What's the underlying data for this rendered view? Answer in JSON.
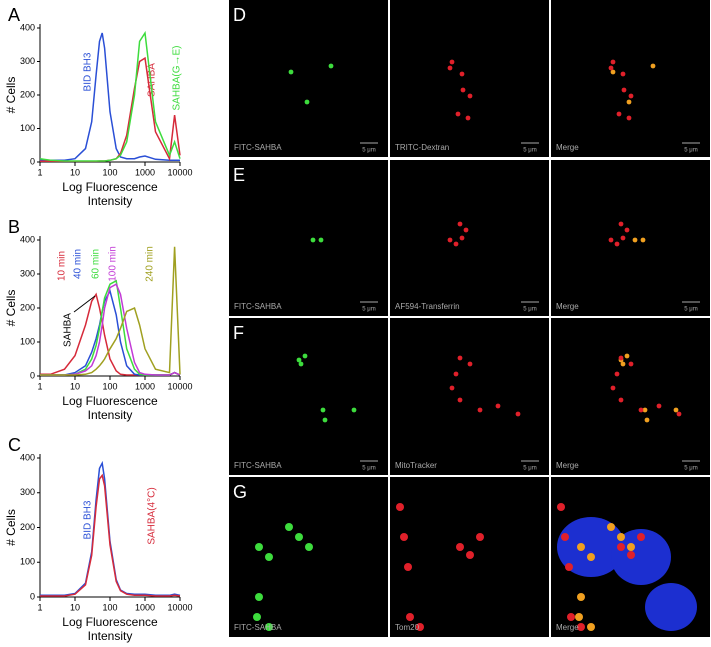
{
  "chart_data": [
    {
      "type": "line",
      "panel": "A",
      "ylabel": "# Cells",
      "xlabel": "Log Fluorescence Intensity",
      "xscale": "log",
      "xlim": [
        1,
        10000
      ],
      "xticks": [
        1,
        10,
        100,
        1000,
        10000
      ],
      "ylim": [
        0,
        400
      ],
      "yticks": [
        0,
        100,
        200,
        300,
        400
      ],
      "x": [
        1,
        2,
        5,
        10,
        20,
        30,
        40,
        50,
        60,
        70,
        100,
        150,
        200,
        300,
        500,
        700,
        1000,
        2000,
        5000,
        7000,
        10000
      ],
      "series": [
        {
          "name": "BID BH3",
          "color": "#2a4fd6",
          "values": [
            5,
            5,
            5,
            10,
            40,
            120,
            260,
            360,
            385,
            340,
            150,
            40,
            15,
            10,
            10,
            15,
            18,
            8,
            5,
            5,
            5
          ]
        },
        {
          "name": "SAHBA",
          "color": "#d62a3a",
          "values": [
            2,
            2,
            2,
            2,
            2,
            2,
            2,
            3,
            3,
            3,
            5,
            10,
            25,
            80,
            220,
            300,
            310,
            90,
            10,
            140,
            20
          ]
        },
        {
          "name": "SAHBA(G→E)",
          "color": "#3ddc3d",
          "values": [
            10,
            5,
            3,
            3,
            3,
            3,
            3,
            3,
            3,
            3,
            5,
            10,
            20,
            60,
            200,
            360,
            385,
            120,
            20,
            60,
            10
          ]
        }
      ]
    },
    {
      "type": "line",
      "panel": "B",
      "ylabel": "# Cells",
      "xlabel": "Log Fluorescence Intensity",
      "xscale": "log",
      "xlim": [
        1,
        10000
      ],
      "xticks": [
        1,
        10,
        100,
        1000,
        10000
      ],
      "ylim": [
        0,
        400
      ],
      "yticks": [
        0,
        100,
        200,
        300,
        400
      ],
      "annotation": "SAHBA",
      "x": [
        1,
        2,
        5,
        10,
        20,
        30,
        40,
        50,
        60,
        70,
        100,
        150,
        200,
        300,
        500,
        700,
        1000,
        2000,
        5000,
        7000,
        10000
      ],
      "series": [
        {
          "name": "10 min",
          "color": "#d62a3a",
          "values": [
            5,
            5,
            20,
            60,
            150,
            220,
            240,
            200,
            160,
            120,
            50,
            15,
            5,
            3,
            3,
            3,
            3,
            3,
            3,
            10,
            3
          ]
        },
        {
          "name": "40 min",
          "color": "#2a4fd6",
          "values": [
            3,
            3,
            3,
            10,
            30,
            70,
            110,
            150,
            190,
            220,
            250,
            180,
            100,
            30,
            5,
            3,
            3,
            3,
            3,
            10,
            3
          ]
        },
        {
          "name": "60 min",
          "color": "#3ddc3d",
          "values": [
            3,
            3,
            3,
            5,
            20,
            50,
            90,
            140,
            190,
            230,
            270,
            280,
            200,
            80,
            20,
            5,
            3,
            3,
            3,
            10,
            3
          ]
        },
        {
          "name": "100 min",
          "color": "#c23ad6",
          "values": [
            3,
            3,
            3,
            5,
            15,
            30,
            60,
            100,
            150,
            200,
            260,
            270,
            240,
            140,
            40,
            10,
            5,
            3,
            3,
            10,
            3
          ]
        },
        {
          "name": "240 min",
          "color": "#a0a020",
          "values": [
            3,
            3,
            3,
            3,
            5,
            10,
            20,
            30,
            40,
            50,
            80,
            110,
            140,
            190,
            200,
            150,
            80,
            20,
            10,
            380,
            5
          ]
        }
      ]
    },
    {
      "type": "line",
      "panel": "C",
      "ylabel": "# Cells",
      "xlabel": "Log Fluorescence Intensity",
      "xscale": "log",
      "xlim": [
        1,
        10000
      ],
      "xticks": [
        1,
        10,
        100,
        1000,
        10000
      ],
      "ylim": [
        0,
        400
      ],
      "yticks": [
        0,
        100,
        200,
        300,
        400
      ],
      "x": [
        1,
        2,
        5,
        10,
        20,
        30,
        40,
        50,
        60,
        70,
        100,
        150,
        200,
        300,
        500,
        700,
        1000,
        2000,
        5000,
        7000,
        10000
      ],
      "series": [
        {
          "name": "BID BH3",
          "color": "#2a4fd6",
          "values": [
            5,
            5,
            5,
            10,
            40,
            130,
            280,
            370,
            385,
            340,
            160,
            50,
            20,
            10,
            8,
            8,
            8,
            5,
            5,
            8,
            5
          ]
        },
        {
          "name": "SAHBA(4°C)",
          "color": "#d62a3a",
          "values": [
            3,
            3,
            3,
            8,
            35,
            120,
            260,
            340,
            350,
            320,
            150,
            45,
            18,
            8,
            5,
            5,
            5,
            3,
            3,
            5,
            3
          ]
        }
      ]
    }
  ],
  "micrographs": [
    {
      "label": "D",
      "panels": [
        {
          "caption": "FITC-SAHBA",
          "scale_bar": "5 μm"
        },
        {
          "caption": "TRITC-Dextran",
          "scale_bar": "5 μm"
        },
        {
          "caption": "Merge",
          "scale_bar": "5 μm"
        }
      ]
    },
    {
      "label": "E",
      "panels": [
        {
          "caption": "FITC-SAHBA",
          "scale_bar": "5 μm"
        },
        {
          "caption": "AF594-Transferrin",
          "scale_bar": "5 μm"
        },
        {
          "caption": "Merge",
          "scale_bar": "5 μm"
        }
      ]
    },
    {
      "label": "F",
      "panels": [
        {
          "caption": "FITC-SAHBA",
          "scale_bar": "5 μm"
        },
        {
          "caption": "MitoTracker",
          "scale_bar": "5 μm"
        },
        {
          "caption": "Merge",
          "scale_bar": "5 μm"
        }
      ]
    },
    {
      "label": "G",
      "panels": [
        {
          "caption": "FITC-SAHBA"
        },
        {
          "caption": "Tom20"
        },
        {
          "caption": "Merge"
        }
      ]
    }
  ]
}
